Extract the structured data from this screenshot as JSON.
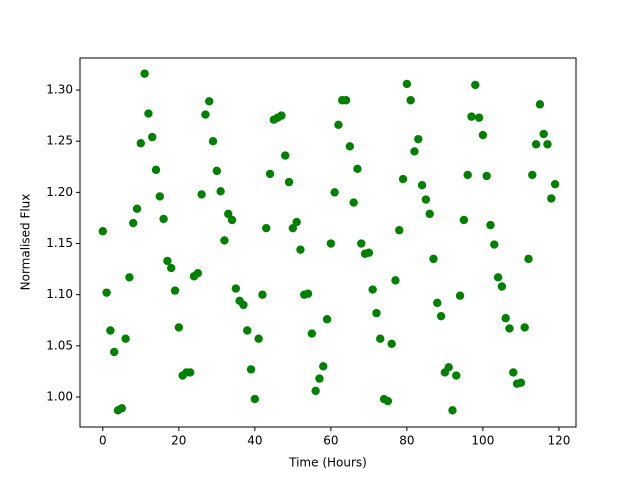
{
  "chart_data": {
    "type": "scatter",
    "xlabel": "Time (Hours)",
    "ylabel": "Normalised Flux",
    "color": "#008000",
    "x": [
      0,
      1,
      2,
      3,
      4,
      5,
      6,
      7,
      8,
      9,
      10,
      11,
      12,
      13,
      14,
      15,
      16,
      17,
      18,
      19,
      20,
      21,
      22,
      23,
      24,
      25,
      26,
      27,
      28,
      29,
      30,
      31,
      32,
      33,
      34,
      35,
      36,
      37,
      38,
      39,
      40,
      41,
      42,
      43,
      44,
      45,
      46,
      47,
      48,
      49,
      50,
      51,
      52,
      53,
      54,
      55,
      56,
      57,
      58,
      59,
      60,
      61,
      62,
      63,
      64,
      65,
      66,
      67,
      68,
      69,
      70,
      71,
      72,
      73,
      74,
      75,
      76,
      77,
      78,
      79,
      80,
      81,
      82,
      83,
      84,
      85,
      86,
      87,
      88,
      89,
      90,
      91,
      92,
      93,
      94,
      95,
      96,
      97,
      98,
      99,
      100,
      101,
      102,
      103,
      104,
      105,
      106,
      107,
      108,
      109,
      110,
      111,
      112,
      113,
      114,
      115,
      116,
      117,
      118,
      119
    ],
    "values": [
      1.162,
      1.102,
      1.065,
      1.044,
      0.987,
      0.989,
      1.057,
      1.117,
      1.17,
      1.184,
      1.248,
      1.316,
      1.277,
      1.254,
      1.222,
      1.196,
      1.174,
      1.133,
      1.126,
      1.104,
      1.068,
      1.021,
      1.024,
      1.024,
      1.118,
      1.121,
      1.198,
      1.276,
      1.289,
      1.25,
      1.221,
      1.201,
      1.153,
      1.179,
      1.173,
      1.106,
      1.094,
      1.09,
      1.065,
      1.027,
      0.998,
      1.057,
      1.1,
      1.165,
      1.218,
      1.271,
      1.273,
      1.275,
      1.236,
      1.21,
      1.165,
      1.171,
      1.144,
      1.1,
      1.101,
      1.062,
      1.006,
      1.018,
      1.03,
      1.076,
      1.15,
      1.2,
      1.266,
      1.29,
      1.29,
      1.245,
      1.19,
      1.223,
      1.15,
      1.14,
      1.141,
      1.105,
      1.082,
      1.057,
      0.998,
      0.996,
      1.052,
      1.114,
      1.163,
      1.213,
      1.306,
      1.29,
      1.24,
      1.252,
      1.207,
      1.193,
      1.179,
      1.135,
      1.092,
      1.079,
      1.024,
      1.029,
      0.987,
      1.021,
      1.099,
      1.173,
      1.217,
      1.274,
      1.305,
      1.273,
      1.256,
      1.216,
      1.168,
      1.149,
      1.117,
      1.108,
      1.077,
      1.067,
      1.024,
      1.013,
      1.014,
      1.068,
      1.135,
      1.217,
      1.247,
      1.286,
      1.257,
      1.247,
      1.194,
      1.208
    ],
    "xlim": [
      -6,
      124.5
    ],
    "ylim": [
      0.9707,
      1.3313
    ],
    "xticks": [
      0,
      20,
      40,
      60,
      80,
      100,
      120
    ],
    "yticks": [
      {
        "value": 1,
        "label": "1.00"
      },
      1.05,
      {
        "value": 1.1,
        "label": "1.10"
      },
      1.15,
      {
        "value": 1.2,
        "label": "1.20"
      },
      1.25,
      {
        "value": 1.3,
        "label": "1.30"
      }
    ],
    "grid": false
  }
}
